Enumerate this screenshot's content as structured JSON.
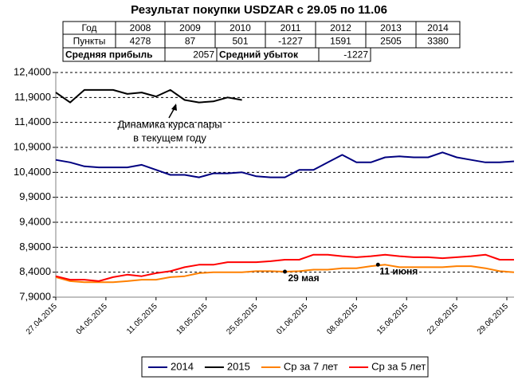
{
  "title": "Результат покупки USDZAR с 29.05 по 11.06",
  "table": {
    "header": [
      "Год",
      "2008",
      "2009",
      "2010",
      "2011",
      "2012",
      "2013",
      "2014"
    ],
    "row": [
      "Пункты",
      4278,
      87,
      501,
      -1227,
      1591,
      2505,
      3380
    ],
    "summary": [
      "Средняя прибыль",
      2057,
      "Средний убыток",
      -1227
    ]
  },
  "chart_data": {
    "type": "line",
    "x": [
      "27.04.2015",
      "29.04.2015",
      "01.05.2015",
      "03.05.2015",
      "05.05.2015",
      "07.05.2015",
      "09.05.2015",
      "11.05.2015",
      "13.05.2015",
      "15.05.2015",
      "17.05.2015",
      "19.05.2015",
      "21.05.2015",
      "23.05.2015",
      "25.05.2015",
      "27.05.2015",
      "29.05.2015",
      "31.05.2015",
      "02.06.2015",
      "04.06.2015",
      "06.06.2015",
      "08.06.2015",
      "10.06.2015",
      "12.06.2015",
      "14.06.2015",
      "16.06.2015",
      "18.06.2015",
      "20.06.2015",
      "22.06.2015",
      "24.06.2015",
      "26.06.2015",
      "28.06.2015",
      "30.06.2015"
    ],
    "series": [
      {
        "name": "2014",
        "color": "#000080",
        "values": [
          10.65,
          10.6,
          10.52,
          10.5,
          10.5,
          10.5,
          10.55,
          10.45,
          10.35,
          10.35,
          10.3,
          10.38,
          10.38,
          10.4,
          10.32,
          10.3,
          10.3,
          10.45,
          10.45,
          10.6,
          10.75,
          10.6,
          10.6,
          10.7,
          10.72,
          10.7,
          10.7,
          10.8,
          10.7,
          10.65,
          10.6,
          10.6,
          10.62
        ]
      },
      {
        "name": "2015",
        "color": "#000000",
        "values": [
          12.0,
          11.8,
          12.05,
          12.05,
          12.05,
          11.97,
          12.0,
          11.92,
          12.05,
          11.85,
          11.8,
          11.82,
          11.9,
          11.85,
          null,
          null,
          null,
          null,
          null,
          null,
          null,
          null,
          null,
          null,
          null,
          null,
          null,
          null,
          null,
          null,
          null,
          null,
          null
        ]
      },
      {
        "name": "Ср за 7 лет",
        "color": "#ff8000",
        "values": [
          8.3,
          8.22,
          8.2,
          8.2,
          8.2,
          8.22,
          8.25,
          8.25,
          8.3,
          8.32,
          8.38,
          8.4,
          8.4,
          8.4,
          8.42,
          8.42,
          8.41,
          8.42,
          8.45,
          8.45,
          8.48,
          8.48,
          8.52,
          8.55,
          8.5,
          8.5,
          8.5,
          8.5,
          8.52,
          8.52,
          8.48,
          8.42,
          8.4
        ]
      },
      {
        "name": "Ср за 5 лет",
        "color": "#ff0000",
        "values": [
          8.32,
          8.25,
          8.25,
          8.22,
          8.3,
          8.35,
          8.32,
          8.38,
          8.42,
          8.5,
          8.55,
          8.55,
          8.6,
          8.6,
          8.6,
          8.62,
          8.65,
          8.65,
          8.75,
          8.75,
          8.72,
          8.7,
          8.72,
          8.75,
          8.72,
          8.7,
          8.7,
          8.68,
          8.7,
          8.72,
          8.75,
          8.65,
          8.65
        ]
      }
    ],
    "xlim": [
      "27.04.2015",
      "30.06.2015"
    ],
    "xticks": [
      "27.04.2015",
      "04.05.2015",
      "11.05.2015",
      "18.05.2015",
      "25.05.2015",
      "01.06.2015",
      "08.06.2015",
      "15.06.2015",
      "22.06.2015",
      "29.06.2015"
    ],
    "ylim": [
      7.9,
      12.4
    ],
    "yticks": [
      {
        "value": 7.9,
        "label": "7,9000"
      },
      {
        "value": 8.4,
        "label": "8,4000"
      },
      {
        "value": 8.9,
        "label": "8,9000"
      },
      {
        "value": 9.4,
        "label": "9,4000"
      },
      {
        "value": 9.9,
        "label": "9,9000"
      },
      {
        "value": 10.4,
        "label": "10,4000"
      },
      {
        "value": 10.9,
        "label": "10,9000"
      },
      {
        "value": 11.4,
        "label": "11,4000"
      },
      {
        "value": 11.9,
        "label": "11,9000"
      },
      {
        "value": 12.4,
        "label": "12,4000"
      }
    ],
    "grid": true,
    "legend": "bottom",
    "annotations": [
      {
        "text": [
          "Динамика курса пары",
          "в текущем году"
        ]
      },
      {
        "text": "29 мая",
        "x": "29.05.2015",
        "y": 8.41
      },
      {
        "text": "11 июня",
        "x": "11.06.2015",
        "y": 8.55
      }
    ]
  }
}
